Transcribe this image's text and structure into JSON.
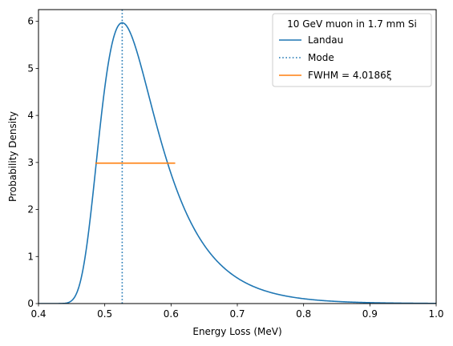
{
  "chart_data": {
    "type": "line",
    "xlabel": "Energy Loss (MeV)",
    "ylabel": "Probability Density",
    "xlim": [
      0.4,
      1.0
    ],
    "ylim": [
      0,
      6.25
    ],
    "x_ticks": [
      "0.4",
      "0.5",
      "0.6",
      "0.7",
      "0.8",
      "0.9",
      "1.0"
    ],
    "y_ticks": [
      "0",
      "1",
      "2",
      "3",
      "4",
      "5",
      "6"
    ],
    "grid": false,
    "legend": {
      "title": "10 GeV muon in 1.7 mm Si",
      "placement": "top-right",
      "entries": [
        "Landau",
        "Mode",
        "FWHM = 4.0186ξ"
      ]
    },
    "series": [
      {
        "name": "Landau",
        "style": "solid",
        "color": "#1f77b4",
        "model": "landau",
        "mode_x": 0.5263,
        "peak_y": 5.97,
        "xi": 0.03
      },
      {
        "name": "Mode",
        "style": "dotted",
        "color": "#1f77b4",
        "x": 0.5263
      },
      {
        "name": "FWHM = 4.0186ξ",
        "style": "solid",
        "color": "#ff7f0e",
        "x_start": 0.4857,
        "x_end": 0.6063,
        "y": 2.985
      }
    ]
  }
}
